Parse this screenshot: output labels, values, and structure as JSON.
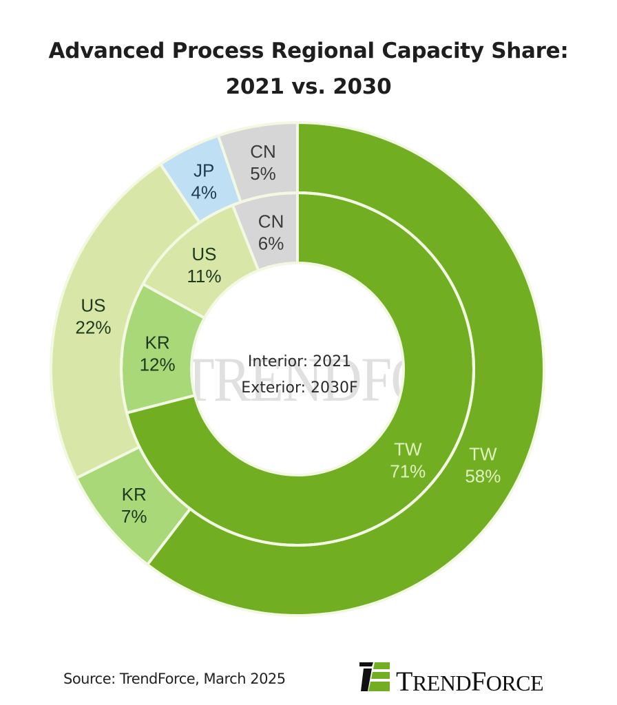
{
  "title_line1": "Advanced Process Regional Capacity Share:",
  "title_line2": "2021 vs. 2030",
  "chart_data": {
    "type": "pie",
    "subtype": "nested-donut",
    "title": "Advanced Process Regional Capacity Share: 2021 vs. 2030",
    "center_label_lines": [
      "Interior: 2021",
      "Exterior: 2030F"
    ],
    "series": [
      {
        "name": "2021",
        "ring": "interior",
        "categories": [
          "TW",
          "KR",
          "US",
          "CN"
        ],
        "values": [
          71,
          12,
          11,
          6
        ],
        "labels": [
          "71%",
          "12%",
          "11%",
          "6%"
        ]
      },
      {
        "name": "2030F",
        "ring": "exterior",
        "categories": [
          "TW",
          "KR",
          "US",
          "JP",
          "CN"
        ],
        "values": [
          58,
          7,
          22,
          4,
          5
        ],
        "labels": [
          "58%",
          "7%",
          "22%",
          "4%",
          "5%"
        ]
      }
    ],
    "colors": {
      "TW": "#72ae22",
      "KR": "#a8d878",
      "US": "#d8e6a8",
      "JP": "#bfe0f4",
      "CN": "#d6d6d6",
      "separator": "#f2f8e2"
    },
    "label_colors": {
      "TW": "#dff2c0",
      "KR": "#1d3a1d",
      "US": "#1d3a1d",
      "JP": "#1f3a52",
      "CN": "#3a3a3a"
    },
    "direction": "clockwise from top"
  },
  "watermark": "TRENDFORCE",
  "footer": {
    "source": "Source: TrendForce, March 2025",
    "brand_first": "T",
    "brand_rest1": "REND",
    "brand_mid": "F",
    "brand_rest2": "ORCE"
  }
}
